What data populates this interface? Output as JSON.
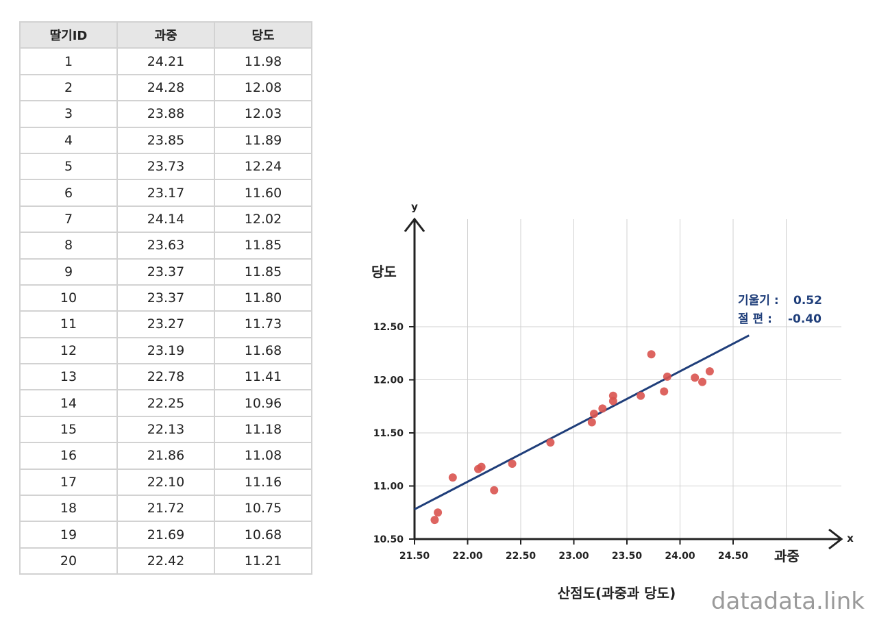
{
  "table": {
    "headers": [
      "딸기ID",
      "과중",
      "당도"
    ],
    "rows": [
      [
        "1",
        "24.21",
        "11.98"
      ],
      [
        "2",
        "24.28",
        "12.08"
      ],
      [
        "3",
        "23.88",
        "12.03"
      ],
      [
        "4",
        "23.85",
        "11.89"
      ],
      [
        "5",
        "23.73",
        "12.24"
      ],
      [
        "6",
        "23.17",
        "11.60"
      ],
      [
        "7",
        "24.14",
        "12.02"
      ],
      [
        "8",
        "23.63",
        "11.85"
      ],
      [
        "9",
        "23.37",
        "11.85"
      ],
      [
        "10",
        "23.37",
        "11.80"
      ],
      [
        "11",
        "23.27",
        "11.73"
      ],
      [
        "12",
        "23.19",
        "11.68"
      ],
      [
        "13",
        "22.78",
        "11.41"
      ],
      [
        "14",
        "22.25",
        "10.96"
      ],
      [
        "15",
        "22.13",
        "11.18"
      ],
      [
        "16",
        "21.86",
        "11.08"
      ],
      [
        "17",
        "22.10",
        "11.16"
      ],
      [
        "18",
        "21.72",
        "10.75"
      ],
      [
        "19",
        "21.69",
        "10.68"
      ],
      [
        "20",
        "22.42",
        "11.21"
      ]
    ]
  },
  "chart_data": {
    "type": "scatter",
    "title": "산점도(과중과 당도)",
    "xlabel": "과중",
    "ylabel": "당도",
    "x_axis_letter": "x",
    "y_axis_letter": "y",
    "xlim": [
      21.5,
      25.0
    ],
    "ylim": [
      10.5,
      12.75
    ],
    "x_ticks": [
      "21.50",
      "22.00",
      "22.50",
      "23.00",
      "23.50",
      "24.00",
      "24.50"
    ],
    "y_ticks": [
      "10.50",
      "11.00",
      "11.50",
      "12.00",
      "12.50"
    ],
    "grid": true,
    "points": {
      "x": [
        24.21,
        24.28,
        23.88,
        23.85,
        23.73,
        23.17,
        24.14,
        23.63,
        23.37,
        23.37,
        23.27,
        23.19,
        22.78,
        22.25,
        22.13,
        21.86,
        22.1,
        21.72,
        21.69,
        22.42
      ],
      "y": [
        11.98,
        12.08,
        12.03,
        11.89,
        12.24,
        11.6,
        12.02,
        11.85,
        11.85,
        11.8,
        11.73,
        11.68,
        11.41,
        10.96,
        11.18,
        11.08,
        11.16,
        10.75,
        10.68,
        11.21
      ]
    },
    "regression": {
      "slope": 0.52,
      "intercept": -0.4,
      "x_range": [
        21.5,
        24.65
      ]
    },
    "annotation": {
      "slope_label": "기울기 :",
      "slope_value": "0.52",
      "intercept_label": "절   편 :",
      "intercept_value": "-0.40"
    },
    "colors": {
      "points": "#d9534f",
      "line": "#1f3e7a",
      "grid": "#d0d0d0",
      "axis": "#222222"
    }
  },
  "watermark": "datadata.link"
}
